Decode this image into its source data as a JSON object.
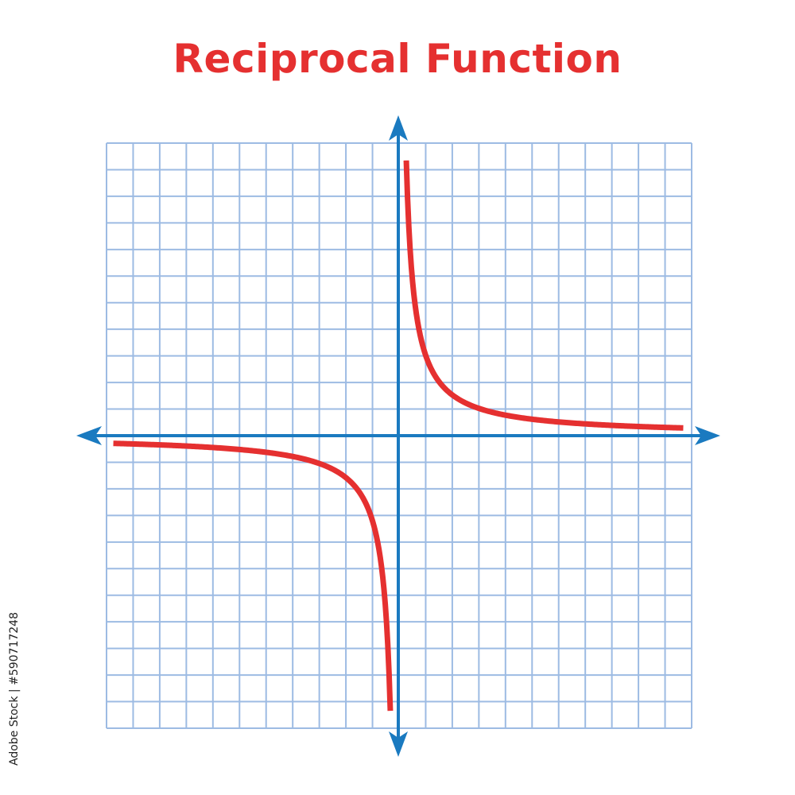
{
  "chart_data": {
    "type": "line",
    "title": "Reciprocal Function",
    "xlabel": "",
    "ylabel": "",
    "xlim": [
      -11,
      11
    ],
    "ylim": [
      -11,
      11
    ],
    "grid": true,
    "axes_arrows": true,
    "series": [
      {
        "function": "1/x",
        "branch": "positive",
        "x": [
          0.3,
          0.5,
          1,
          1.5,
          2,
          3,
          4,
          5,
          6,
          7,
          8,
          9,
          10.7
        ],
        "y_scale": 3.1
      },
      {
        "function": "1/x",
        "branch": "negative",
        "x": [
          -10.7,
          -9,
          -8,
          -7,
          -6,
          -5,
          -4,
          -3,
          -2,
          -1.5,
          -1,
          -0.5,
          -0.3
        ],
        "y_scale": 3.1
      }
    ],
    "colors": {
      "curve": "#e53030",
      "axis": "#1a7ac0",
      "grid": "#9dbbe3",
      "title": "#e53030"
    }
  },
  "watermark": {
    "stock_id": "Adobe Stock | #590717248"
  }
}
